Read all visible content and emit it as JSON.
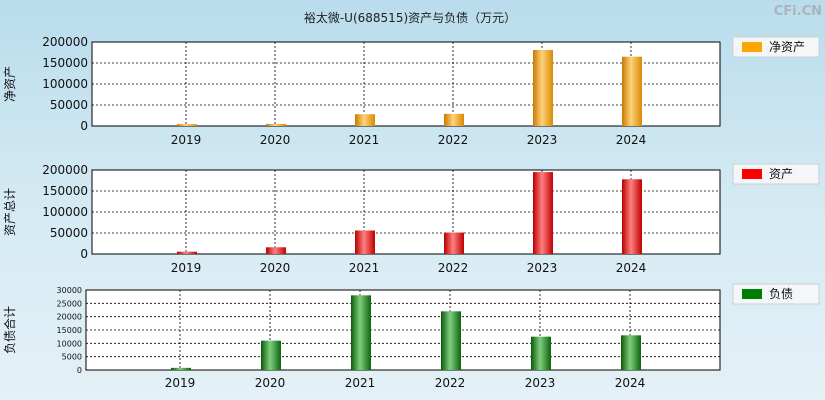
{
  "header": {
    "title": "裕太微-U(688515)资产与负债（万元）",
    "brand": "CFi.CN"
  },
  "chart_data": [
    {
      "type": "bar",
      "categories": [
        "2019",
        "2020",
        "2021",
        "2022",
        "2023",
        "2024"
      ],
      "series": [
        {
          "name": "净资产",
          "values": [
            4500,
            4800,
            28000,
            29000,
            181000,
            165000
          ]
        }
      ],
      "ylabel": "净资产",
      "ylim": [
        0,
        200000
      ],
      "yticks": [
        0,
        50000,
        100000,
        150000,
        200000
      ],
      "grid": true,
      "legend": "right",
      "color": "#ffa500"
    },
    {
      "type": "bar",
      "categories": [
        "2019",
        "2020",
        "2021",
        "2022",
        "2023",
        "2024"
      ],
      "series": [
        {
          "name": "资产",
          "values": [
            5500,
            16000,
            56000,
            51000,
            195000,
            178000
          ]
        }
      ],
      "ylabel": "资产总计",
      "ylim": [
        0,
        200000
      ],
      "yticks": [
        0,
        50000,
        100000,
        150000,
        200000
      ],
      "grid": true,
      "legend": "right",
      "color": "#ff0000"
    },
    {
      "type": "bar",
      "categories": [
        "2019",
        "2020",
        "2021",
        "2022",
        "2023",
        "2024"
      ],
      "series": [
        {
          "name": "负债",
          "values": [
            800,
            11000,
            28000,
            22000,
            12500,
            13000
          ]
        }
      ],
      "ylabel": "负债合计",
      "ylim": [
        0,
        30000
      ],
      "yticks": [
        0,
        5000,
        10000,
        15000,
        20000,
        25000,
        30000
      ],
      "grid": true,
      "legend": "right",
      "color": "#008000"
    }
  ]
}
